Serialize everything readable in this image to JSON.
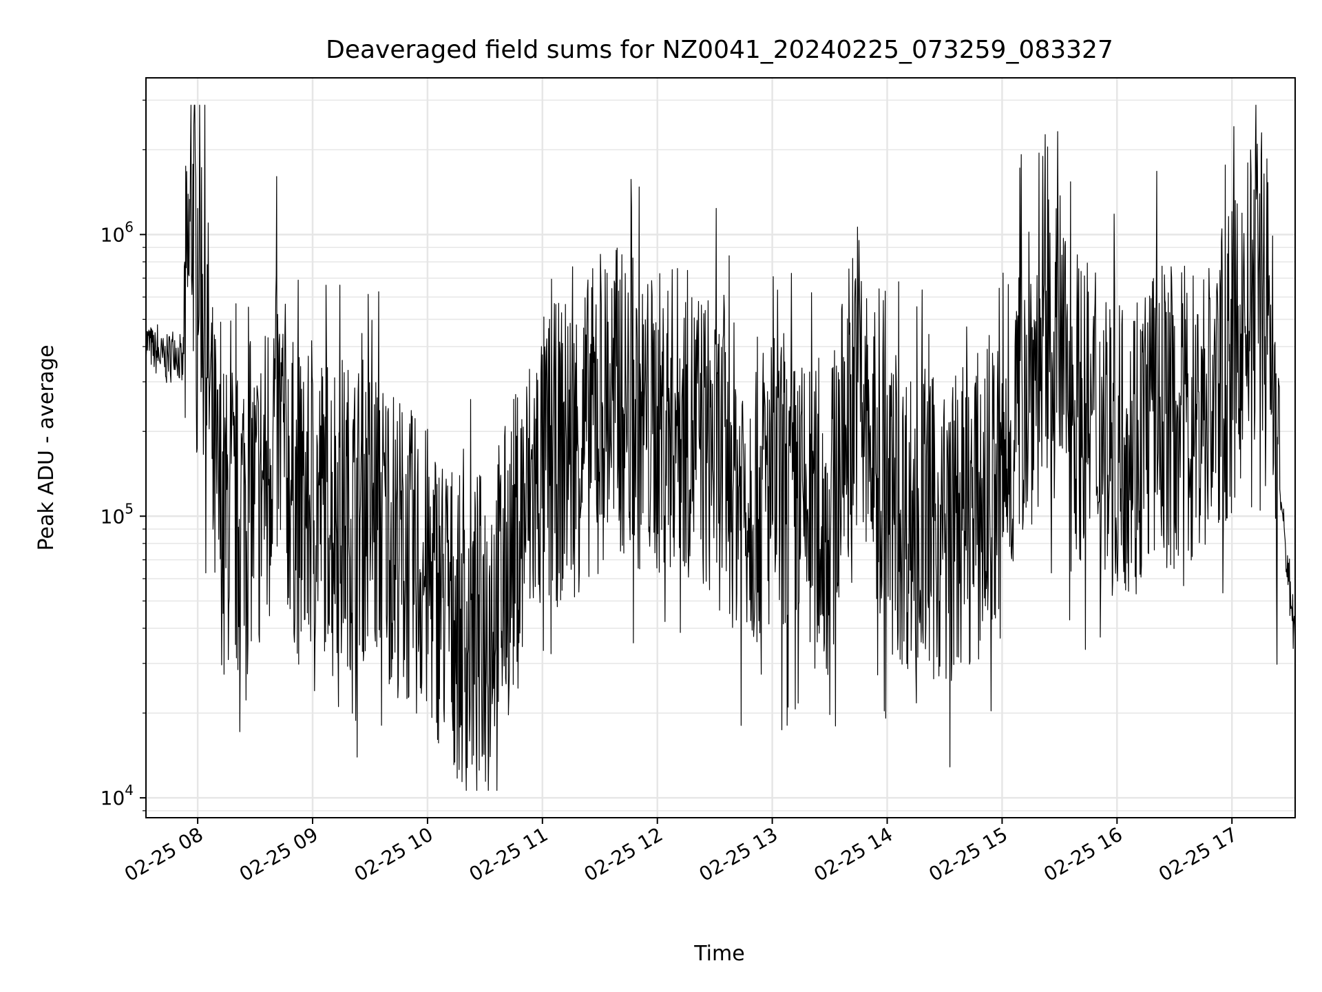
{
  "chart_data": {
    "type": "line",
    "title": "Deaveraged field sums for NZ0041_20240225_073259_083327",
    "xlabel": "Time",
    "ylabel": "Peak ADU - average",
    "yscale": "log",
    "ylim": [
      8500,
      3600000
    ],
    "xlim": [
      "02-25 07:33",
      "02-25 17:33"
    ],
    "grid": true,
    "line_color": "#000000",
    "grid_color": "#e6e6e6",
    "x_ticks": [
      {
        "time": "02-25 08:00",
        "label": "02-25 08"
      },
      {
        "time": "02-25 09:00",
        "label": "02-25 09"
      },
      {
        "time": "02-25 10:00",
        "label": "02-25 10"
      },
      {
        "time": "02-25 11:00",
        "label": "02-25 11"
      },
      {
        "time": "02-25 12:00",
        "label": "02-25 12"
      },
      {
        "time": "02-25 13:00",
        "label": "02-25 13"
      },
      {
        "time": "02-25 14:00",
        "label": "02-25 14"
      },
      {
        "time": "02-25 15:00",
        "label": "02-25 15"
      },
      {
        "time": "02-25 16:00",
        "label": "02-25 16"
      },
      {
        "time": "02-25 17:00",
        "label": "02-25 17"
      }
    ],
    "y_ticks": [
      {
        "value": 10000,
        "base": "10",
        "exp": "4"
      },
      {
        "value": 100000,
        "base": "10",
        "exp": "5"
      },
      {
        "value": 1000000,
        "base": "10",
        "exp": "6"
      }
    ],
    "series": [
      {
        "points": [
          [
            "02-25 07:33",
            420000
          ],
          [
            "02-25 07:38",
            380000
          ],
          [
            "02-25 07:43",
            360000
          ],
          [
            "02-25 07:48",
            400000
          ],
          [
            "02-25 07:52",
            330000
          ],
          [
            "02-25 07:55",
            700000
          ],
          [
            "02-25 07:57",
            1300000
          ],
          [
            "02-25 07:59",
            900000
          ],
          [
            "02-25 08:01",
            1000000
          ],
          [
            "02-25 08:04",
            500000
          ],
          [
            "02-25 08:06",
            300000
          ],
          [
            "02-25 08:08",
            160000
          ],
          [
            "02-25 08:10",
            110000
          ],
          [
            "02-25 08:15",
            100000
          ],
          [
            "02-25 08:20",
            90000
          ],
          [
            "02-25 08:25",
            130000
          ],
          [
            "02-25 08:30",
            110000
          ],
          [
            "02-25 08:35",
            140000
          ],
          [
            "02-25 08:40",
            230000
          ],
          [
            "02-25 08:45",
            180000
          ],
          [
            "02-25 08:50",
            120000
          ],
          [
            "02-25 08:55",
            100000
          ],
          [
            "02-25 09:00",
            110000
          ],
          [
            "02-25 09:10",
            120000
          ],
          [
            "02-25 09:20",
            100000
          ],
          [
            "02-25 09:30",
            110000
          ],
          [
            "02-25 09:40",
            90000
          ],
          [
            "02-25 09:50",
            70000
          ],
          [
            "02-25 10:00",
            60000
          ],
          [
            "02-25 10:10",
            50000
          ],
          [
            "02-25 10:20",
            35000
          ],
          [
            "02-25 10:30",
            45000
          ],
          [
            "02-25 10:40",
            60000
          ],
          [
            "02-25 10:50",
            100000
          ],
          [
            "02-25 11:00",
            150000
          ],
          [
            "02-25 11:10",
            170000
          ],
          [
            "02-25 11:20",
            190000
          ],
          [
            "02-25 11:30",
            240000
          ],
          [
            "02-25 11:40",
            260000
          ],
          [
            "02-25 11:50",
            220000
          ],
          [
            "02-25 12:00",
            210000
          ],
          [
            "02-25 12:10",
            230000
          ],
          [
            "02-25 12:20",
            200000
          ],
          [
            "02-25 12:30",
            170000
          ],
          [
            "02-25 12:40",
            140000
          ],
          [
            "02-25 12:50",
            120000
          ],
          [
            "02-25 13:00",
            130000
          ],
          [
            "02-25 13:10",
            110000
          ],
          [
            "02-25 13:20",
            100000
          ],
          [
            "02-25 13:30",
            90000
          ],
          [
            "02-25 13:40",
            250000
          ],
          [
            "02-25 13:45",
            350000
          ],
          [
            "02-25 13:50",
            180000
          ],
          [
            "02-25 14:00",
            110000
          ],
          [
            "02-25 14:10",
            100000
          ],
          [
            "02-25 14:20",
            95000
          ],
          [
            "02-25 14:30",
            85000
          ],
          [
            "02-25 14:40",
            100000
          ],
          [
            "02-25 14:50",
            110000
          ],
          [
            "02-25 15:00",
            130000
          ],
          [
            "02-25 15:10",
            280000
          ],
          [
            "02-25 15:20",
            380000
          ],
          [
            "02-25 15:30",
            400000
          ],
          [
            "02-25 15:40",
            250000
          ],
          [
            "02-25 15:50",
            200000
          ],
          [
            "02-25 16:00",
            180000
          ],
          [
            "02-25 16:10",
            200000
          ],
          [
            "02-25 16:20",
            240000
          ],
          [
            "02-25 16:30",
            220000
          ],
          [
            "02-25 16:40",
            230000
          ],
          [
            "02-25 16:50",
            260000
          ],
          [
            "02-25 17:00",
            350000
          ],
          [
            "02-25 17:10",
            600000
          ],
          [
            "02-25 17:15",
            750000
          ],
          [
            "02-25 17:20",
            500000
          ],
          [
            "02-25 17:24",
            150000
          ],
          [
            "02-25 17:27",
            90000
          ],
          [
            "02-25 17:30",
            55000
          ],
          [
            "02-25 17:33",
            38000
          ]
        ]
      }
    ]
  }
}
